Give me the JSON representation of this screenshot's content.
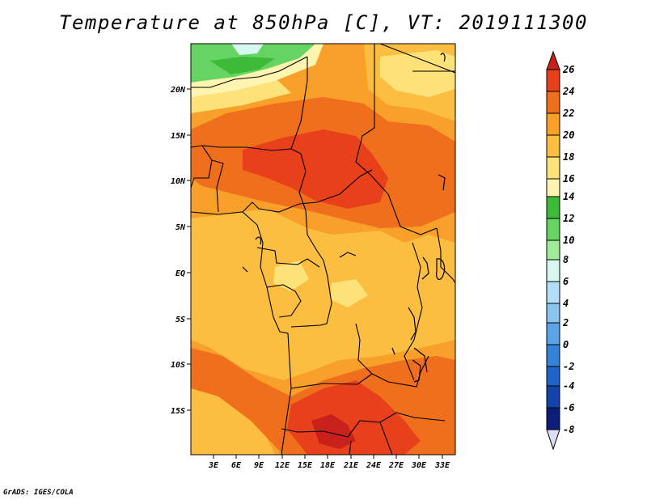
{
  "title": "Temperature at 850hPa [C], VT: 2019111300",
  "credit": "GrADS: IGES/COLA",
  "map": {
    "lat_labels": [
      "20N",
      "15N",
      "10N",
      "5N",
      "EQ",
      "5S",
      "10S",
      "15S"
    ],
    "lon_labels": [
      "3E",
      "6E",
      "9E",
      "12E",
      "15E",
      "18E",
      "21E",
      "24E",
      "27E",
      "30E",
      "33E"
    ]
  },
  "colorbar": {
    "labels": [
      "26",
      "24",
      "22",
      "20",
      "18",
      "16",
      "14",
      "12",
      "10",
      "8",
      "6",
      "4",
      "2",
      "0",
      "-2",
      "-4",
      "-6",
      "-8"
    ],
    "colors": {
      "gt26": "#c8201a",
      "c24_26": "#e8401a",
      "c22_24": "#f06f1c",
      "c20_22": "#f8a02a",
      "c18_20": "#fbbe40",
      "c16_18": "#fde27a",
      "c14_16": "#fff4b0",
      "c12_14": "#3cba38",
      "c10_12": "#66d462",
      "c8_10": "#a0eb9a",
      "c6_8": "#d6f8f0",
      "c4_6": "#b4def8",
      "c2_4": "#8cc4f0",
      "c0_2": "#5ca4e6",
      "m2_0": "#3384d8",
      "m4_m2": "#1f64c8",
      "m6_m4": "#1444aa",
      "m8_m6": "#0c1c7a",
      "lt_m8": "#ddddf6"
    }
  }
}
